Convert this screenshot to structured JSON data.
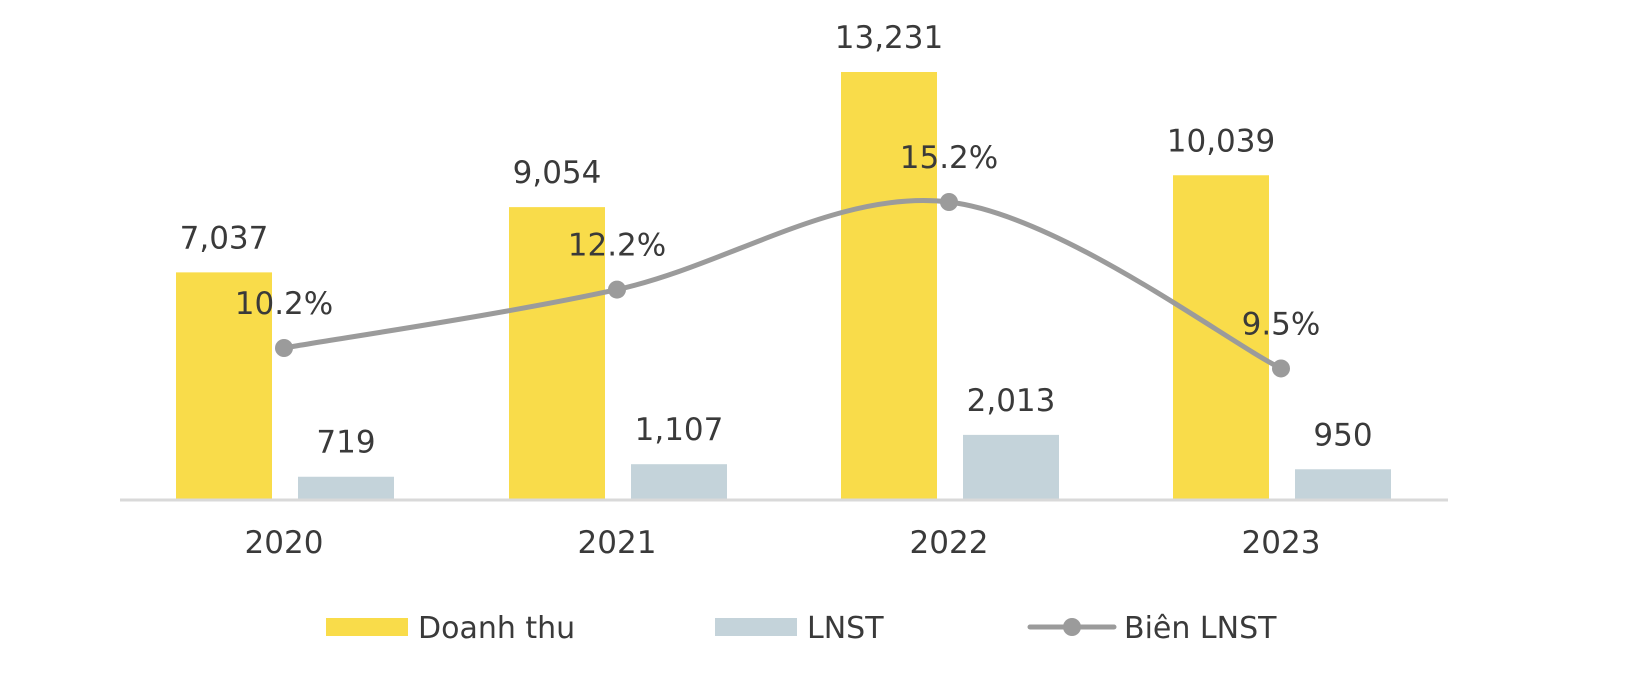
{
  "chart_data": {
    "type": "bar",
    "categories": [
      "2020",
      "2021",
      "2022",
      "2023"
    ],
    "series": [
      {
        "name": "Doanh thu",
        "type": "bar",
        "values": [
          7037,
          9054,
          13231,
          10039
        ],
        "labels": [
          "7,037",
          "9,054",
          "13,231",
          "10,039"
        ],
        "color": "#F9DC4A"
      },
      {
        "name": "LNST",
        "type": "bar",
        "values": [
          719,
          1107,
          2013,
          950
        ],
        "labels": [
          "719",
          "1,107",
          "2,013",
          "950"
        ],
        "color": "#C4D3DA"
      },
      {
        "name": "Biên LNST",
        "type": "line",
        "values": [
          10.2,
          12.2,
          15.2,
          9.5
        ],
        "labels": [
          "10.2%",
          "12.2%",
          "15.2%",
          "9.5%"
        ],
        "color": "#9B9B9B",
        "axis": "secondary"
      }
    ],
    "title": "",
    "xlabel": "",
    "ylabel": "",
    "ylim": [
      0,
      14000
    ],
    "y2lim": [
      0,
      18
    ],
    "grid": false,
    "legend_position": "bottom",
    "axis_color": "#D9D9D9"
  }
}
